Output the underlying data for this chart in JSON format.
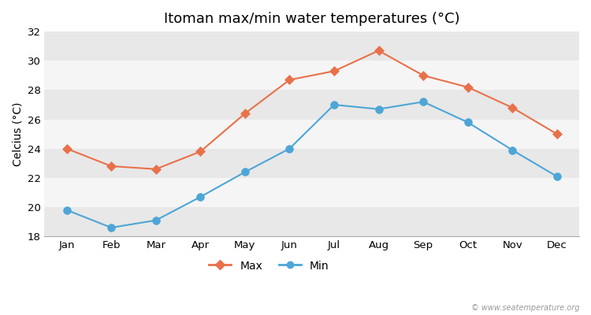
{
  "title": "Itoman max/min water temperatures (°C)",
  "ylabel": "Celcius (°C)",
  "months": [
    "Jan",
    "Feb",
    "Mar",
    "Apr",
    "May",
    "Jun",
    "Jul",
    "Aug",
    "Sep",
    "Oct",
    "Nov",
    "Dec"
  ],
  "max_temps": [
    24.0,
    22.8,
    22.6,
    23.8,
    26.4,
    28.7,
    29.3,
    30.7,
    29.0,
    28.2,
    26.8,
    25.0
  ],
  "min_temps": [
    19.8,
    18.6,
    19.1,
    20.7,
    22.4,
    24.0,
    27.0,
    26.7,
    27.2,
    25.8,
    23.9,
    22.1
  ],
  "max_color": "#e8714a",
  "min_color": "#4da6d6",
  "ylim": [
    18,
    32
  ],
  "yticks": [
    18,
    20,
    22,
    24,
    26,
    28,
    30,
    32
  ],
  "background_color": "#ffffff",
  "plot_bg_color": "#ffffff",
  "band_colors": [
    "#e8e8e8",
    "#f5f5f5"
  ],
  "watermark": "© www.seatemperature.org",
  "title_fontsize": 13,
  "label_fontsize": 10,
  "tick_fontsize": 9.5,
  "legend_labels": [
    "Max",
    "Min"
  ]
}
